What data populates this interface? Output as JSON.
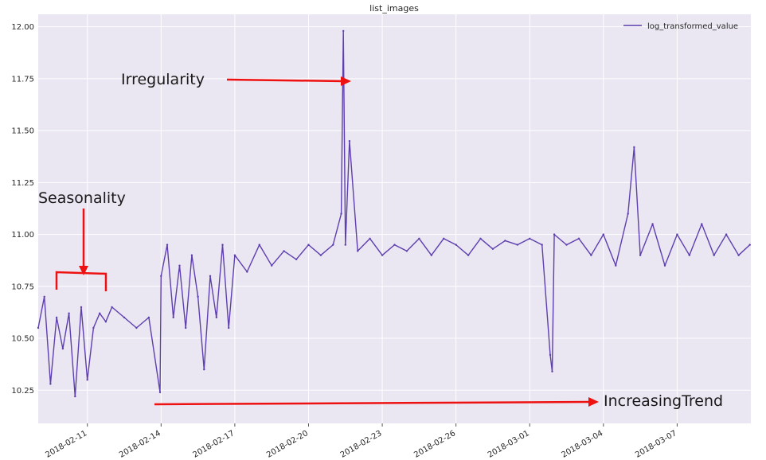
{
  "chart_data": {
    "type": "line",
    "title": "list_images",
    "xlabel": "",
    "ylabel": "",
    "xlim": [
      "2018-02-09T00:00",
      "2018-03-10T00:00"
    ],
    "ylim": [
      10.09,
      12.06
    ],
    "yticks": [
      10.25,
      10.5,
      10.75,
      11.0,
      11.25,
      11.5,
      11.75,
      12.0
    ],
    "ytick_labels": [
      "10.25",
      "10.50",
      "10.75",
      "11.00",
      "11.25",
      "11.50",
      "11.75",
      "12.00"
    ],
    "xticks": [
      "2018-02-11",
      "2018-02-14",
      "2018-02-17",
      "2018-02-20",
      "2018-02-23",
      "2018-02-26",
      "2018-03-01",
      "2018-03-04",
      "2018-03-07"
    ],
    "grid": true,
    "legend_position": "top-right",
    "series": [
      {
        "name": "log_transformed_value",
        "color": "#5e3fae",
        "points": [
          [
            "2018-02-09T00:00",
            10.55
          ],
          [
            "2018-02-09T06:00",
            10.7
          ],
          [
            "2018-02-09T12:00",
            10.28
          ],
          [
            "2018-02-09T18:00",
            10.6
          ],
          [
            "2018-02-10T00:00",
            10.45
          ],
          [
            "2018-02-10T06:00",
            10.62
          ],
          [
            "2018-02-10T12:00",
            10.22
          ],
          [
            "2018-02-10T18:00",
            10.65
          ],
          [
            "2018-02-11T00:00",
            10.3
          ],
          [
            "2018-02-11T06:00",
            10.55
          ],
          [
            "2018-02-11T12:00",
            10.62
          ],
          [
            "2018-02-11T18:00",
            10.58
          ],
          [
            "2018-02-12T00:00",
            10.65
          ],
          [
            "2018-02-12T12:00",
            10.6
          ],
          [
            "2018-02-13T00:00",
            10.55
          ],
          [
            "2018-02-13T12:00",
            10.6
          ],
          [
            "2018-02-13T23:00",
            10.24
          ],
          [
            "2018-02-14T00:00",
            10.8
          ],
          [
            "2018-02-14T06:00",
            10.95
          ],
          [
            "2018-02-14T12:00",
            10.6
          ],
          [
            "2018-02-14T18:00",
            10.85
          ],
          [
            "2018-02-15T00:00",
            10.55
          ],
          [
            "2018-02-15T06:00",
            10.9
          ],
          [
            "2018-02-15T12:00",
            10.7
          ],
          [
            "2018-02-15T18:00",
            10.35
          ],
          [
            "2018-02-16T00:00",
            10.8
          ],
          [
            "2018-02-16T06:00",
            10.6
          ],
          [
            "2018-02-16T12:00",
            10.95
          ],
          [
            "2018-02-16T18:00",
            10.55
          ],
          [
            "2018-02-17T00:00",
            10.9
          ],
          [
            "2018-02-17T12:00",
            10.82
          ],
          [
            "2018-02-18T00:00",
            10.95
          ],
          [
            "2018-02-18T12:00",
            10.85
          ],
          [
            "2018-02-19T00:00",
            10.92
          ],
          [
            "2018-02-19T12:00",
            10.88
          ],
          [
            "2018-02-20T00:00",
            10.95
          ],
          [
            "2018-02-20T12:00",
            10.9
          ],
          [
            "2018-02-21T00:00",
            10.95
          ],
          [
            "2018-02-21T08:00",
            11.1
          ],
          [
            "2018-02-21T10:00",
            11.98
          ],
          [
            "2018-02-21T12:00",
            10.95
          ],
          [
            "2018-02-21T16:00",
            11.45
          ],
          [
            "2018-02-22T00:00",
            10.92
          ],
          [
            "2018-02-22T12:00",
            10.98
          ],
          [
            "2018-02-23T00:00",
            10.9
          ],
          [
            "2018-02-23T12:00",
            10.95
          ],
          [
            "2018-02-24T00:00",
            10.92
          ],
          [
            "2018-02-24T12:00",
            10.98
          ],
          [
            "2018-02-25T00:00",
            10.9
          ],
          [
            "2018-02-25T12:00",
            10.98
          ],
          [
            "2018-02-26T00:00",
            10.95
          ],
          [
            "2018-02-26T12:00",
            10.9
          ],
          [
            "2018-02-27T00:00",
            10.98
          ],
          [
            "2018-02-27T12:00",
            10.93
          ],
          [
            "2018-02-28T00:00",
            10.97
          ],
          [
            "2018-02-28T12:00",
            10.95
          ],
          [
            "2018-03-01T00:00",
            10.98
          ],
          [
            "2018-03-01T12:00",
            10.95
          ],
          [
            "2018-03-01T20:00",
            10.42
          ],
          [
            "2018-03-01T22:00",
            10.34
          ],
          [
            "2018-03-02T00:00",
            11.0
          ],
          [
            "2018-03-02T12:00",
            10.95
          ],
          [
            "2018-03-03T00:00",
            10.98
          ],
          [
            "2018-03-03T12:00",
            10.9
          ],
          [
            "2018-03-04T00:00",
            11.0
          ],
          [
            "2018-03-04T12:00",
            10.85
          ],
          [
            "2018-03-05T00:00",
            11.1
          ],
          [
            "2018-03-05T06:00",
            11.42
          ],
          [
            "2018-03-05T12:00",
            10.9
          ],
          [
            "2018-03-06T00:00",
            11.05
          ],
          [
            "2018-03-06T12:00",
            10.85
          ],
          [
            "2018-03-07T00:00",
            11.0
          ],
          [
            "2018-03-07T12:00",
            10.9
          ],
          [
            "2018-03-08T00:00",
            11.05
          ],
          [
            "2018-03-08T12:00",
            10.9
          ],
          [
            "2018-03-09T00:00",
            11.0
          ],
          [
            "2018-03-09T12:00",
            10.9
          ],
          [
            "2018-03-09T23:00",
            10.95
          ]
        ]
      }
    ],
    "annotations": [
      {
        "text": "Irregularity",
        "target": "spike on 2018-02-21"
      },
      {
        "text": "Seasonality",
        "target": "daily cycle around 2018-02-10"
      },
      {
        "text": "IncreasingTrend",
        "target": "trend over whole range"
      }
    ]
  }
}
